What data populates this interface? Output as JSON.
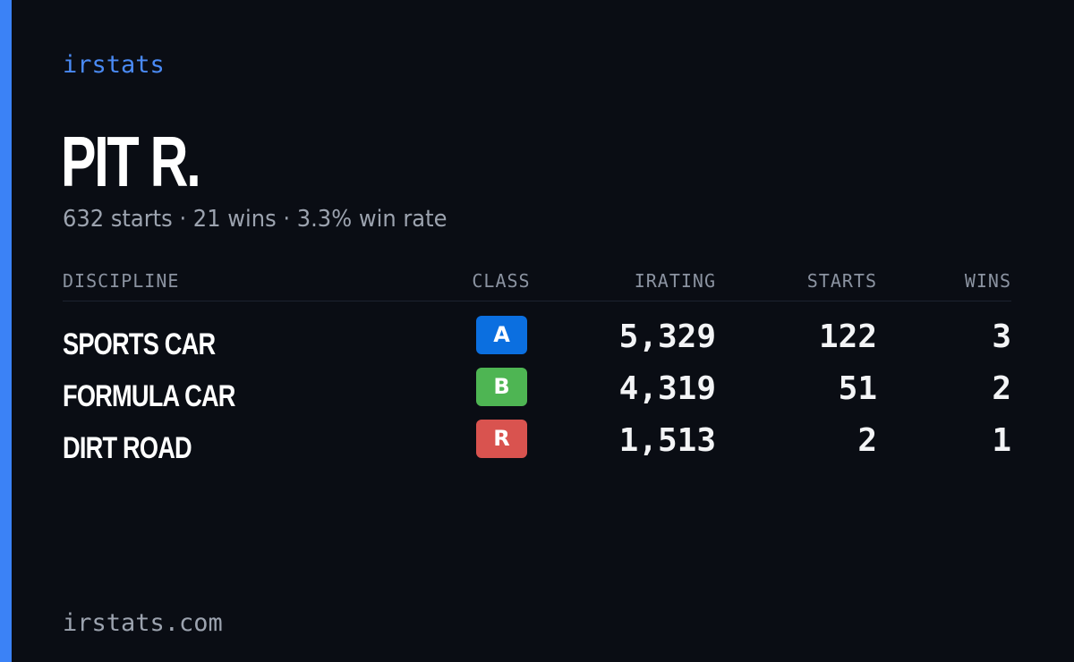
{
  "brand": "irstats",
  "player": {
    "name": "PIT R.",
    "summary": "632 starts · 21 wins · 3.3% win rate"
  },
  "table": {
    "headers": {
      "discipline": "DISCIPLINE",
      "class": "CLASS",
      "irating": "IRATING",
      "starts": "STARTS",
      "wins": "WINS"
    },
    "rows": [
      {
        "discipline": "SPORTS CAR",
        "class": "A",
        "class_color": "#0b6fe0",
        "irating": "5,329",
        "starts": "122",
        "wins": "3"
      },
      {
        "discipline": "FORMULA CAR",
        "class": "B",
        "class_color": "#4eb553",
        "irating": "4,319",
        "starts": "51",
        "wins": "2"
      },
      {
        "discipline": "DIRT ROAD",
        "class": "R",
        "class_color": "#d9534f",
        "irating": "1,513",
        "starts": "2",
        "wins": "1"
      }
    ]
  },
  "footer": "irstats.com",
  "colors": {
    "accent": "#3b82f6",
    "background": "#0a0d14"
  }
}
